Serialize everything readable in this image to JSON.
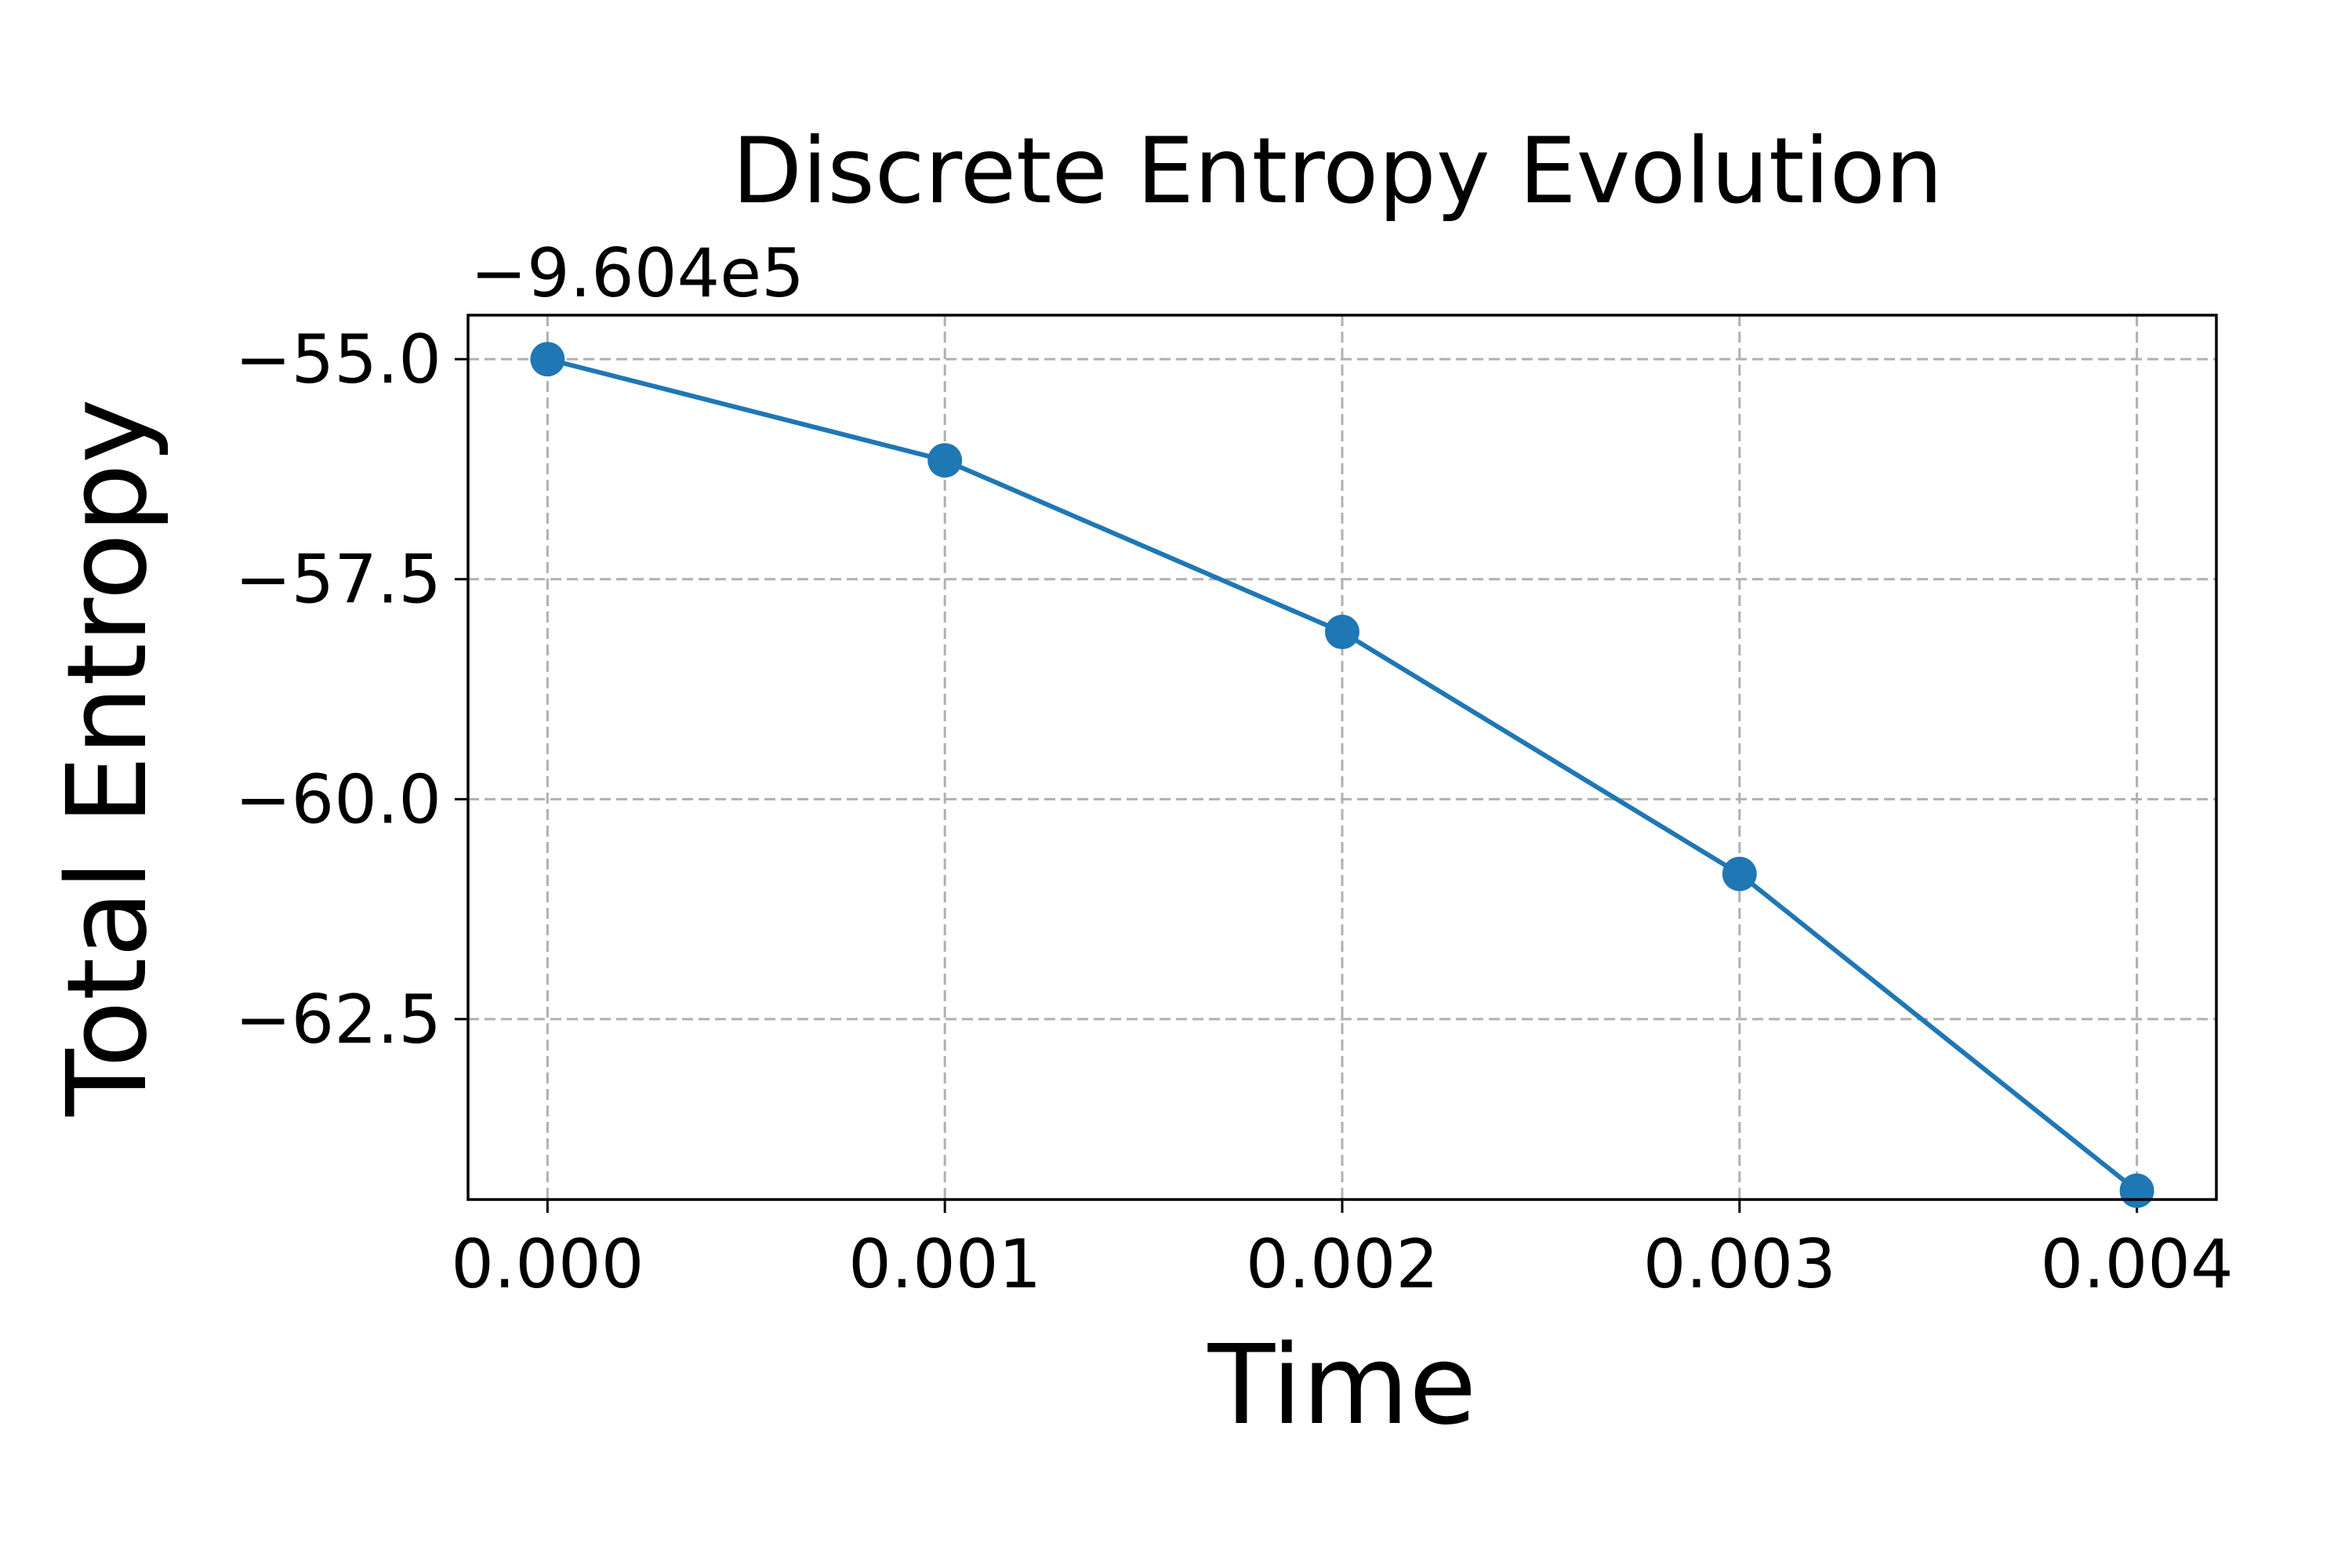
{
  "chart_data": {
    "type": "line",
    "title": "Discrete Entropy Evolution",
    "xlabel": "Time",
    "ylabel": "Total Entropy",
    "y_offset_label": "−9.604e5",
    "xlim": [
      -0.0002,
      0.0042
    ],
    "ylim": [
      -64.55,
      -54.5
    ],
    "x_ticks": [
      0.0,
      0.001,
      0.002,
      0.003,
      0.004
    ],
    "x_tick_labels": [
      "0.000",
      "0.001",
      "0.002",
      "0.003",
      "0.004"
    ],
    "y_ticks": [
      -55.0,
      -57.5,
      -60.0,
      -62.5
    ],
    "y_tick_labels": [
      "−55.0",
      "−57.5",
      "−60.0",
      "−62.5"
    ],
    "grid": true,
    "series": [
      {
        "color": "#1f77b4",
        "marker": "circle",
        "x": [
          0.0,
          0.001,
          0.002,
          0.003,
          0.004
        ],
        "y": [
          -55.0,
          -56.15,
          -58.1,
          -60.85,
          -64.45
        ]
      }
    ]
  }
}
